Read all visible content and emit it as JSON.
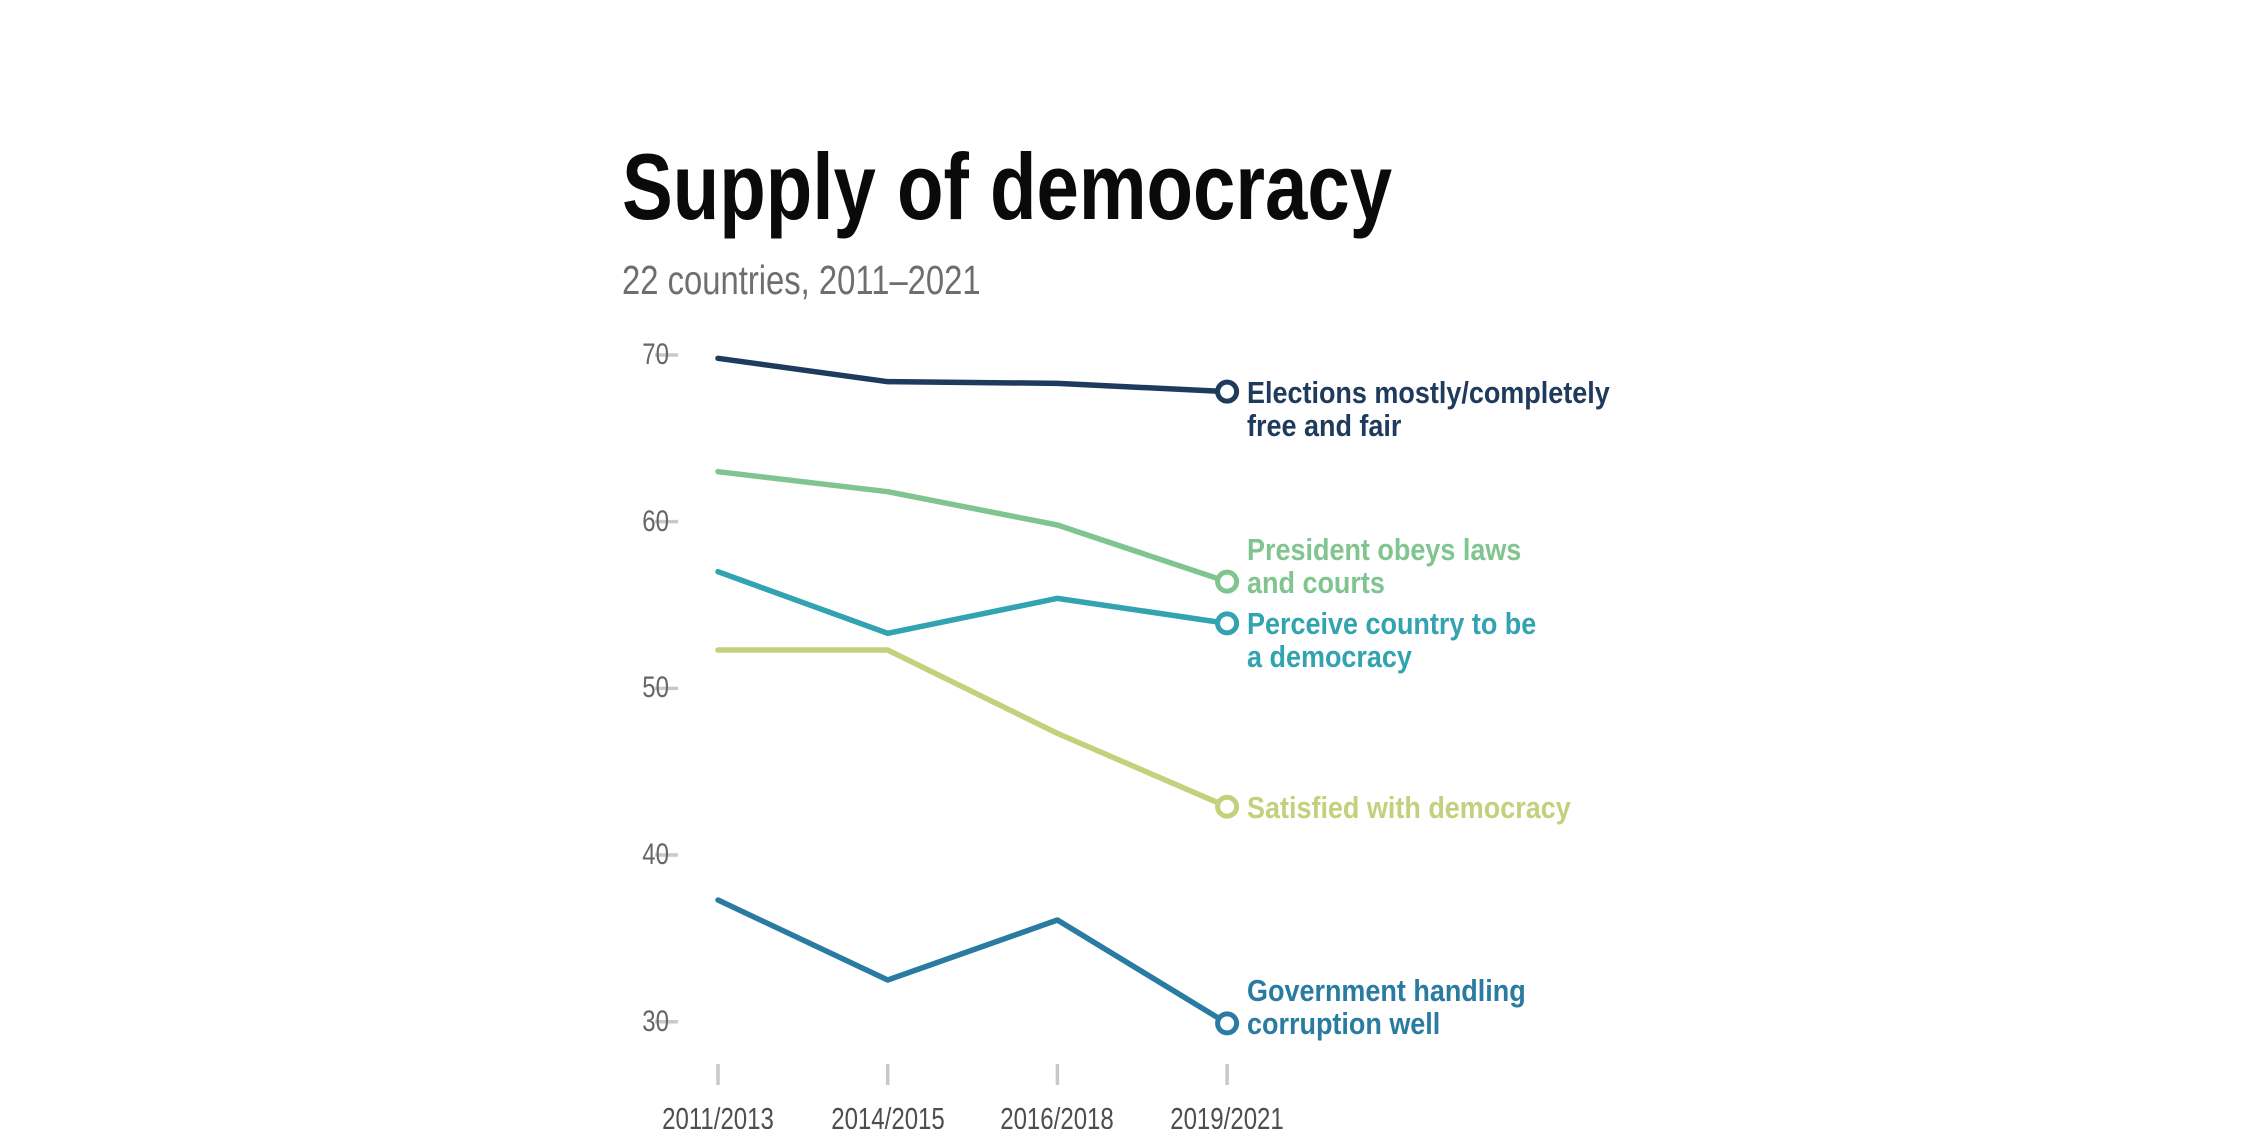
{
  "title": "Supply of democracy",
  "subtitle": "22 countries, 2011–2021",
  "chart_data": {
    "type": "line",
    "categories": [
      "2011/2013",
      "2014/2015",
      "2016/2018",
      "2019/2021"
    ],
    "y_ticks": [
      70,
      60,
      50,
      40,
      30
    ],
    "ylim": [
      30,
      70
    ],
    "grid": false,
    "marker": "open-circle-at-last-point",
    "legend_position": "labels-right-of-line-ends",
    "series": [
      {
        "name": "Elections mostly/completely free and fair",
        "label_lines": [
          "Elections mostly/completely",
          "free and fair"
        ],
        "anchor_line": 0,
        "color": "#1e3a5c",
        "values": [
          69.8,
          68.4,
          68.3,
          67.8
        ]
      },
      {
        "name": "President obeys laws and courts",
        "label_lines": [
          "President obeys laws",
          "and courts"
        ],
        "anchor_line": 1,
        "color": "#80c48f",
        "values": [
          63.0,
          61.8,
          59.8,
          56.4
        ]
      },
      {
        "name": "Perceive country to be a democracy",
        "label_lines": [
          "Perceive country to be",
          "a democracy"
        ],
        "anchor_line": 0,
        "color": "#31a3b1",
        "values": [
          57.0,
          53.3,
          55.4,
          53.9
        ]
      },
      {
        "name": "Satisfied with democracy",
        "label_lines": [
          "Satisfied with democracy"
        ],
        "anchor_line": 0,
        "color": "#c2d17b",
        "values": [
          52.3,
          52.3,
          47.3,
          42.9
        ]
      },
      {
        "name": "Government handling corruption well",
        "label_lines": [
          "Government handling",
          "corruption well"
        ],
        "anchor_line": 1,
        "color": "#2a7ba2",
        "values": [
          37.3,
          32.5,
          36.1,
          29.9
        ]
      }
    ]
  },
  "colors": {
    "background": "#ffffff",
    "tick": "#c9c9c9",
    "y_label": "#666666",
    "x_label": "#4e4e4e",
    "title": "#0a0a0a",
    "subtitle": "#6e6e6e"
  }
}
